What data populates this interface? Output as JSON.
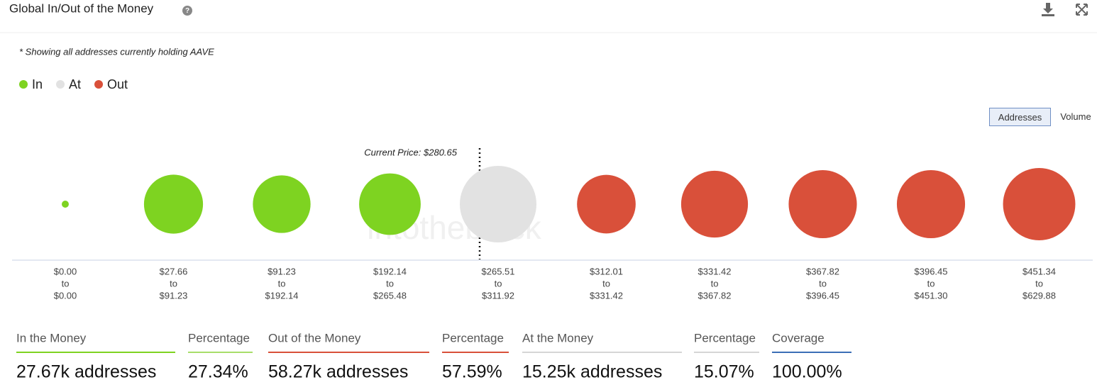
{
  "header": {
    "title": "Global In/Out of the Money"
  },
  "chart_data": {
    "type": "bubble",
    "note": "* Showing all addresses currently holding AAVE",
    "legend": [
      {
        "name": "In",
        "color": "#7ed321"
      },
      {
        "name": "At",
        "color": "#e2e2e2"
      },
      {
        "name": "Out",
        "color": "#d9503a"
      }
    ],
    "range_separator": "to",
    "ranges": [
      {
        "from": "$0.00",
        "to": "$0.00"
      },
      {
        "from": "$27.66",
        "to": "$91.23"
      },
      {
        "from": "$91.23",
        "to": "$192.14"
      },
      {
        "from": "$192.14",
        "to": "$265.48"
      },
      {
        "from": "$265.51",
        "to": "$311.92"
      },
      {
        "from": "$312.01",
        "to": "$331.42"
      },
      {
        "from": "$331.42",
        "to": "$367.82"
      },
      {
        "from": "$367.82",
        "to": "$396.45"
      },
      {
        "from": "$396.45",
        "to": "$451.30"
      },
      {
        "from": "$451.34",
        "to": "$629.88"
      }
    ],
    "status": [
      0,
      0,
      0,
      0,
      1,
      2,
      2,
      2,
      2,
      2
    ],
    "values": [
      130,
      9050,
      8640,
      9850,
      15250,
      8930,
      11600,
      12080,
      12080,
      13580
    ],
    "annotation": "Current Price: $280.65",
    "watermark": "intotheblock"
  },
  "buttons": [
    "Addresses",
    "Volume"
  ],
  "stats": [
    {
      "label": "In the Money",
      "value": "27.67k addresses",
      "color": "#7ed321"
    },
    {
      "label": "Percentage",
      "value": "27.34%",
      "color": "#a8de6a"
    },
    {
      "label": "Out of the Money",
      "value": "58.27k addresses",
      "color": "#d9503a"
    },
    {
      "label": "Percentage",
      "value": "57.59%",
      "color": "#d9503a"
    },
    {
      "label": "At the Money",
      "value": "15.25k addresses",
      "color": "#d6d6d6"
    },
    {
      "label": "Percentage",
      "value": "15.07%",
      "color": "#d6d6d6"
    },
    {
      "label": "Coverage",
      "value": "100.00%",
      "color": "#3b6fb6"
    }
  ]
}
